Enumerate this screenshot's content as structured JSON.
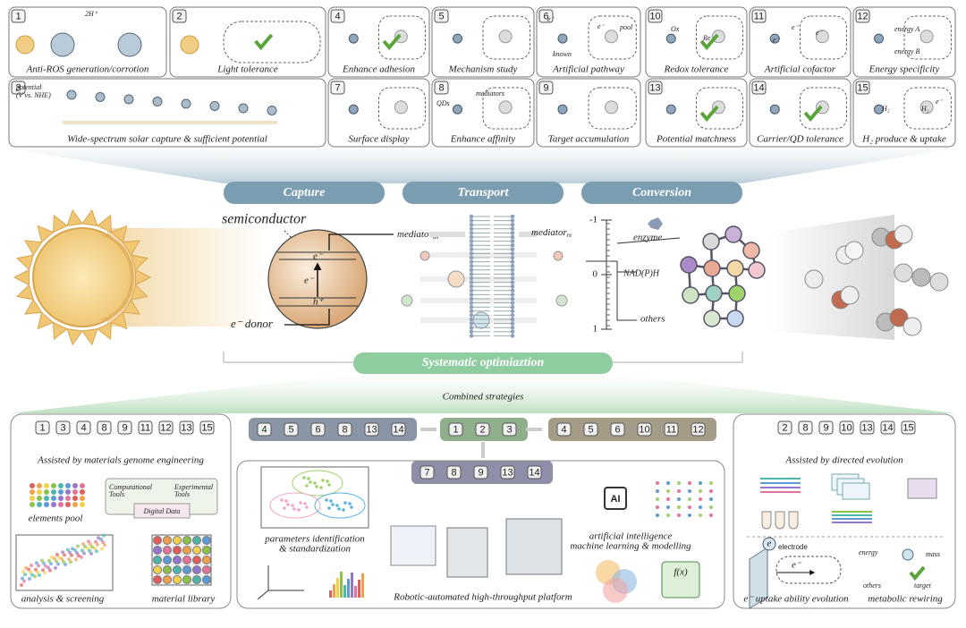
{
  "top_panels": [
    {
      "number": 1,
      "label": "Anti-ROS generation/corrotion",
      "notes": [
        "2H⁺"
      ]
    },
    {
      "number": 2,
      "label": "Light tolerance",
      "notes": []
    },
    {
      "number": 3,
      "label": "Wide-spectrum solar capture & sufficient potential",
      "notes": [
        "potential",
        "(V vs. NHE)"
      ]
    },
    {
      "number": 4,
      "label": "Enhance adhesion",
      "notes": []
    },
    {
      "number": 5,
      "label": "Mechanism study",
      "notes": []
    },
    {
      "number": 6,
      "label": "Artificial pathway",
      "notes": [
        "e⁻",
        "e⁻",
        "pool",
        "known"
      ]
    },
    {
      "number": 7,
      "label": "Surface display",
      "notes": []
    },
    {
      "number": 8,
      "label": "Enhance affinity",
      "notes": [
        "QDs",
        "mediators"
      ]
    },
    {
      "number": 9,
      "label": "Target accumulation",
      "notes": []
    },
    {
      "number": 10,
      "label": "Redox tolerance",
      "notes": [
        "Ox",
        "Re"
      ]
    },
    {
      "number": 11,
      "label": "Artificial cofactor",
      "notes": [
        "e⁻",
        "e⁻",
        "e⁻"
      ]
    },
    {
      "number": 12,
      "label": "Energy specificity",
      "notes": [
        "energy A",
        "energy B"
      ]
    },
    {
      "number": 13,
      "label": "Potential matchness",
      "notes": []
    },
    {
      "number": 14,
      "label": "Carrier/QD tolerance",
      "notes": []
    },
    {
      "number": 15,
      "label": "H₂ produce & uptake",
      "notes": [
        "H₂",
        "H₂",
        "e⁻"
      ]
    }
  ],
  "stages": [
    "Capture",
    "Transport",
    "Conversion"
  ],
  "process": {
    "semiconductor": "semiconductor",
    "mediator_ox": {
      "base": "mediator",
      "sub": "ox"
    },
    "mediator_re": {
      "base": "mediator",
      "sub": "re"
    },
    "electron": "e⁻",
    "hole": "h⁺",
    "donor": "e⁻ donor",
    "axis_ticks": [
      "-1",
      "0",
      "1"
    ],
    "targets": [
      "enzyme",
      "NAD(P)H",
      "others"
    ]
  },
  "banner": "Systematic optimiaztion",
  "combined": {
    "title": "Combined strategies",
    "groups": [
      {
        "numbers": [
          4,
          5,
          6,
          8,
          13,
          14
        ],
        "color": "#8a96a6"
      },
      {
        "numbers": [
          1,
          2,
          3
        ],
        "color": "#8fae8c"
      },
      {
        "numbers": [
          4,
          5,
          6,
          10,
          11,
          12
        ],
        "color": "#a39c86"
      },
      {
        "numbers": [
          7,
          8,
          9,
          13,
          14
        ],
        "color": "#8f8ea8"
      }
    ]
  },
  "left_box": {
    "numbers": [
      1,
      3,
      4,
      8,
      9,
      11,
      12,
      13,
      15
    ],
    "title": "Assisted by materials genome engineering",
    "elements_pool": "elements pool",
    "computational": [
      "Computational",
      "Tools"
    ],
    "experimental": [
      "Experimental",
      "Tools"
    ],
    "digital": "Digital Data",
    "analysis": "analysis & screening",
    "library": "material library"
  },
  "center_box": {
    "parameters": [
      "parameters identification",
      "& standardization"
    ],
    "robotic": "Robotic-automated high-throughput platform",
    "ai": [
      "artificial intelligence",
      "machine learning & modelling"
    ],
    "ai_chip": "AI",
    "fx": "f(x)"
  },
  "right_box": {
    "numbers": [
      2,
      8,
      9,
      10,
      13,
      14,
      15
    ],
    "title": "Assisted by directed evolution",
    "electrode_e": "e",
    "electrode": "electrode",
    "electron": "e⁻",
    "uptake": "e⁻ uptake ability evolution",
    "energy": "energy",
    "mass": "mass",
    "others": "others",
    "target": "target",
    "rewiring": "metabolic rewiring"
  }
}
